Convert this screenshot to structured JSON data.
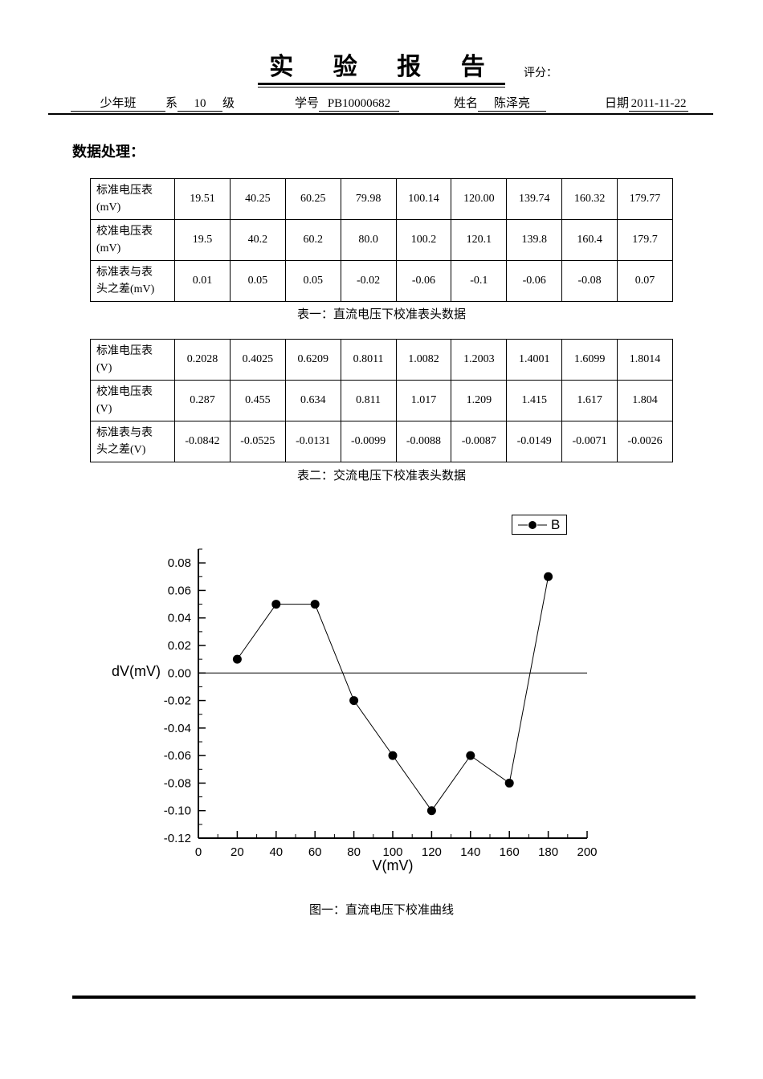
{
  "header": {
    "title": "实 验 报 告",
    "score_label": "评分：",
    "class_value": "少年班",
    "dept_label": "系",
    "grade_value": "10",
    "grade_label": "级",
    "student_id_label": "学号",
    "student_id": "PB10000682",
    "name_label": "姓名",
    "name": "陈泽亮",
    "date_label": "日期",
    "date": "2011-11-22"
  },
  "section_title": "数据处理：",
  "table1": {
    "rows": [
      {
        "header": "标准电压表\n(mV)",
        "values": [
          "19.51",
          "40.25",
          "60.25",
          "79.98",
          "100.14",
          "120.00",
          "139.74",
          "160.32",
          "179.77"
        ]
      },
      {
        "header": "校准电压表\n(mV)",
        "values": [
          "19.5",
          "40.2",
          "60.2",
          "80.0",
          "100.2",
          "120.1",
          "139.8",
          "160.4",
          "179.7"
        ]
      },
      {
        "header": "标准表与表\n头之差(mV)",
        "values": [
          "0.01",
          "0.05",
          "0.05",
          "-0.02",
          "-0.06",
          "-0.1",
          "-0.06",
          "-0.08",
          "0.07"
        ]
      }
    ],
    "caption": "表一：直流电压下校准表头数据"
  },
  "table2": {
    "rows": [
      {
        "header": "标准电压表\n(V)",
        "values": [
          "0.2028",
          "0.4025",
          "0.6209",
          "0.8011",
          "1.0082",
          "1.2003",
          "1.4001",
          "1.6099",
          "1.8014"
        ]
      },
      {
        "header": "校准电压表\n(V)",
        "values": [
          "0.287",
          "0.455",
          "0.634",
          "0.811",
          "1.017",
          "1.209",
          "1.415",
          "1.617",
          "1.804"
        ]
      },
      {
        "header": "标准表与表\n头之差(V)",
        "values": [
          "-0.0842",
          "-0.0525",
          "-0.0131",
          "-0.0099",
          "-0.0088",
          "-0.0087",
          "-0.0149",
          "-0.0071",
          "-0.0026"
        ]
      }
    ],
    "caption": "表二：交流电压下校准表头数据"
  },
  "chart_data": {
    "type": "line",
    "series": [
      {
        "name": "B",
        "x": [
          20,
          40,
          60,
          80,
          100,
          120,
          140,
          160,
          180
        ],
        "y": [
          0.01,
          0.05,
          0.05,
          -0.02,
          -0.06,
          -0.1,
          -0.06,
          -0.08,
          0.07
        ]
      }
    ],
    "xlabel": "V(mV)",
    "ylabel": "dV(mV)",
    "xlim": [
      0,
      200
    ],
    "ylim": [
      -0.12,
      0.09
    ],
    "x_major_step": 20,
    "x_minor_step": 10,
    "y_major_step": 0.02,
    "y_minor_step": 0.01,
    "zero_line": true,
    "grid": false,
    "legend_position": "top-right",
    "marker": "filled-circle",
    "line_color": "#000000"
  },
  "figure_caption": "图一：直流电压下校准曲线"
}
